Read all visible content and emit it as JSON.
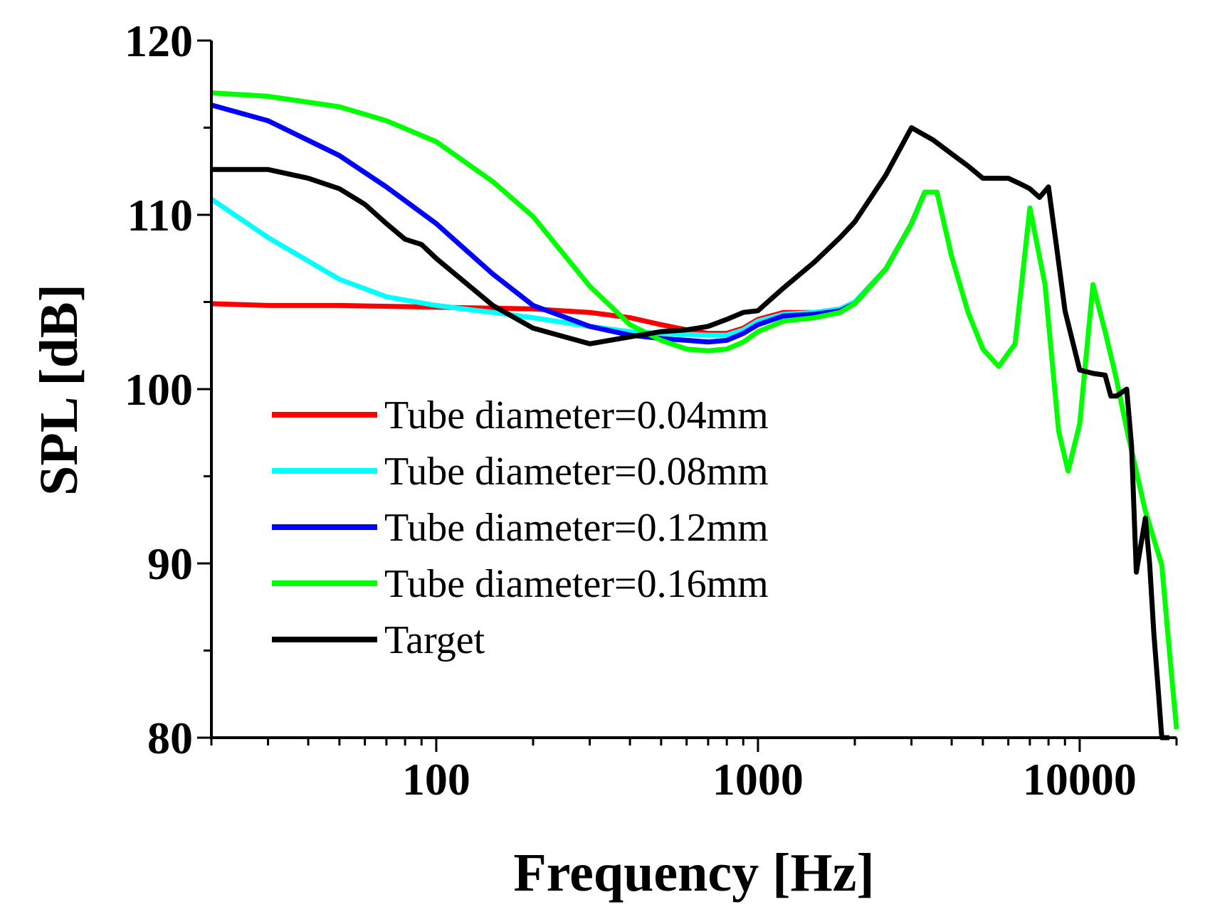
{
  "chart_data": {
    "type": "line",
    "title": "",
    "xlabel": "Frequency [Hz]",
    "ylabel": "SPL [dB]",
    "xscale": "log",
    "xlim": [
      20,
      20000
    ],
    "ylim": [
      80,
      120
    ],
    "x_ticks": [
      100,
      1000,
      10000
    ],
    "x_tick_labels": [
      "100",
      "1000",
      "10000"
    ],
    "y_ticks": [
      80,
      90,
      100,
      110,
      120
    ],
    "y_tick_labels": [
      "80",
      "90",
      "100",
      "110",
      "120"
    ],
    "legend_position": "center-left",
    "series": [
      {
        "name": "Tube diameter=0.04mm",
        "color": "#ff0000",
        "x": [
          20,
          30,
          50,
          100,
          200,
          300,
          400,
          500,
          600,
          700,
          800,
          900,
          1000,
          1200,
          1500,
          1800,
          2000,
          2500,
          3000,
          3300
        ],
        "y": [
          104.9,
          104.8,
          104.8,
          104.7,
          104.6,
          104.4,
          104.1,
          103.7,
          103.4,
          103.2,
          103.2,
          103.5,
          104.0,
          104.4,
          104.4,
          104.6,
          105.0,
          106.9,
          109.5,
          111.3
        ]
      },
      {
        "name": "Tube diameter=0.08mm",
        "color": "#00ffff",
        "x": [
          20,
          30,
          50,
          70,
          100,
          150,
          200,
          300,
          400,
          500,
          700,
          800,
          900,
          1000,
          1200,
          1500,
          1800,
          2000,
          2500,
          3000,
          3300
        ],
        "y": [
          110.9,
          108.7,
          106.3,
          105.3,
          104.8,
          104.4,
          104.1,
          103.6,
          103.3,
          103.2,
          103.1,
          103.1,
          103.4,
          103.9,
          104.3,
          104.4,
          104.6,
          105.0,
          106.9,
          109.5,
          111.3
        ]
      },
      {
        "name": "Tube diameter=0.12mm",
        "color": "#0000ff",
        "x": [
          20,
          30,
          50,
          70,
          100,
          150,
          200,
          300,
          400,
          500,
          600,
          700,
          800,
          900,
          1000,
          1200,
          1500,
          1800,
          2000,
          2500,
          3000,
          3300
        ],
        "y": [
          116.3,
          115.4,
          113.4,
          111.6,
          109.5,
          106.6,
          104.8,
          103.6,
          103.1,
          102.9,
          102.8,
          102.7,
          102.8,
          103.2,
          103.7,
          104.2,
          104.3,
          104.5,
          104.9,
          106.9,
          109.5,
          111.3
        ]
      },
      {
        "name": "Tube diameter=0.16mm",
        "color": "#00ff00",
        "x": [
          20,
          30,
          50,
          70,
          100,
          150,
          200,
          300,
          400,
          500,
          600,
          700,
          800,
          900,
          1000,
          1200,
          1500,
          1800,
          2000,
          2500,
          3000,
          3300,
          3600,
          4000,
          4500,
          5000,
          5600,
          6300,
          7000,
          7800,
          8600,
          9200,
          10000,
          11000,
          12000,
          13000,
          14000,
          16000,
          18000,
          19000,
          20000
        ],
        "y": [
          117.0,
          116.8,
          116.2,
          115.4,
          114.2,
          111.9,
          109.9,
          105.9,
          103.7,
          102.8,
          102.3,
          102.2,
          102.3,
          102.7,
          103.3,
          103.9,
          104.1,
          104.4,
          104.9,
          106.9,
          109.5,
          111.3,
          111.3,
          107.6,
          104.4,
          102.3,
          101.3,
          102.6,
          110.4,
          106.0,
          97.6,
          95.3,
          98.0,
          106.0,
          103.3,
          100.6,
          97.7,
          93.0,
          89.9,
          85.0,
          80.5
        ]
      },
      {
        "name": "Target",
        "color": "#000000",
        "x": [
          20,
          25,
          30,
          40,
          50,
          60,
          70,
          80,
          90,
          100,
          150,
          200,
          300,
          400,
          500,
          600,
          700,
          800,
          900,
          1000,
          1200,
          1500,
          1800,
          2000,
          2500,
          3000,
          3500,
          4000,
          4500,
          5000,
          5500,
          6000,
          6500,
          7000,
          7500,
          8000,
          8500,
          9000,
          10000,
          11000,
          12000,
          12500,
          13000,
          14000,
          14500,
          15000,
          16000,
          16500,
          17000,
          17500,
          18000,
          18500,
          19000
        ],
        "y": [
          112.6,
          112.6,
          112.6,
          112.1,
          111.5,
          110.6,
          109.5,
          108.6,
          108.3,
          107.5,
          104.8,
          103.5,
          102.6,
          103.0,
          103.3,
          103.4,
          103.6,
          104.0,
          104.4,
          104.5,
          105.8,
          107.3,
          108.7,
          109.6,
          112.3,
          115.0,
          114.3,
          113.5,
          112.8,
          112.1,
          112.1,
          112.1,
          111.8,
          111.5,
          111.0,
          111.6,
          108.0,
          104.5,
          101.1,
          100.9,
          100.8,
          99.6,
          99.6,
          100.0,
          96.7,
          89.5,
          92.6,
          90.0,
          86.0,
          83.0,
          80.0,
          80.0,
          80.0
        ]
      }
    ]
  }
}
